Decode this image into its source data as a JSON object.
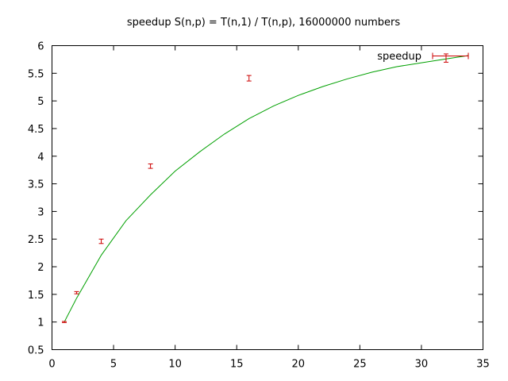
{
  "chart_data": {
    "type": "scatter",
    "title": "speedup S(n,p) = T(n,1) / T(n,p), 16000000 numbers",
    "xlabel": "",
    "ylabel": "",
    "xlim": [
      0,
      35
    ],
    "ylim": [
      0.5,
      6
    ],
    "x_ticks": [
      0,
      5,
      10,
      15,
      20,
      25,
      30,
      35
    ],
    "y_ticks": [
      0.5,
      1,
      1.5,
      2,
      2.5,
      3,
      3.5,
      4,
      4.5,
      5,
      5.5,
      6
    ],
    "grid": false,
    "legend_position": "top-right",
    "series": [
      {
        "name": "speedup",
        "kind": "errorbars",
        "color": "#cc0000",
        "points": [
          {
            "x": 1,
            "y": 1.0,
            "ylow": 0.99,
            "yhigh": 1.01
          },
          {
            "x": 2,
            "y": 1.53,
            "ylow": 1.51,
            "yhigh": 1.55
          },
          {
            "x": 4,
            "y": 2.46,
            "ylow": 2.42,
            "yhigh": 2.5
          },
          {
            "x": 8,
            "y": 3.82,
            "ylow": 3.78,
            "yhigh": 3.86
          },
          {
            "x": 16,
            "y": 5.41,
            "ylow": 5.36,
            "yhigh": 5.46
          },
          {
            "x": 32,
            "y": 5.77,
            "ylow": 5.7,
            "yhigh": 5.85
          }
        ]
      },
      {
        "name": "",
        "kind": "line",
        "color": "#00a000",
        "points": [
          {
            "x": 1,
            "y": 1.0
          },
          {
            "x": 2,
            "y": 1.43
          },
          {
            "x": 4,
            "y": 2.21
          },
          {
            "x": 6,
            "y": 2.83
          },
          {
            "x": 8,
            "y": 3.3
          },
          {
            "x": 10,
            "y": 3.73
          },
          {
            "x": 12,
            "y": 4.08
          },
          {
            "x": 14,
            "y": 4.4
          },
          {
            "x": 16,
            "y": 4.68
          },
          {
            "x": 18,
            "y": 4.91
          },
          {
            "x": 20,
            "y": 5.1
          },
          {
            "x": 22,
            "y": 5.26
          },
          {
            "x": 24,
            "y": 5.4
          },
          {
            "x": 26,
            "y": 5.52
          },
          {
            "x": 28,
            "y": 5.62
          },
          {
            "x": 30,
            "y": 5.69
          },
          {
            "x": 32,
            "y": 5.76
          },
          {
            "x": 33.8,
            "y": 5.82
          }
        ]
      }
    ]
  }
}
